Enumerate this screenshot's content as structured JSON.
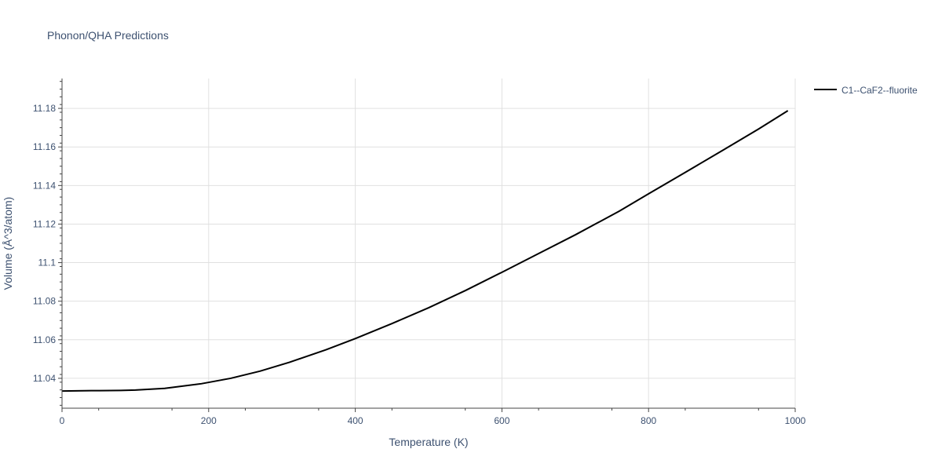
{
  "chart_data": {
    "type": "line",
    "title": "Phonon/QHA Predictions",
    "xlabel": "Temperature (K)",
    "ylabel": "Volume (Å^3/atom)",
    "xlim": [
      0,
      1000
    ],
    "ylim": [
      11.0245,
      11.1955
    ],
    "x_ticks": [
      0,
      200,
      400,
      600,
      800,
      1000
    ],
    "x_tick_labels": [
      "0",
      "200",
      "400",
      "600",
      "800",
      "1000"
    ],
    "y_ticks": [
      11.04,
      11.06,
      11.08,
      11.1,
      11.12,
      11.14,
      11.16,
      11.18
    ],
    "y_tick_labels": [
      "11.04",
      "11.06",
      "11.08",
      "11.1",
      "11.12",
      "11.14",
      "11.16",
      "11.18"
    ],
    "grid": true,
    "legend_position": "top-right",
    "series": [
      {
        "name": "C1--CaF2--fluorite",
        "color": "#000000",
        "x": [
          0,
          40,
          80,
          100,
          140,
          190,
          230,
          270,
          310,
          360,
          400,
          450,
          500,
          550,
          600,
          650,
          700,
          760,
          800,
          850,
          900,
          950,
          990
        ],
        "y": [
          11.0334,
          11.0336,
          11.0337,
          11.0339,
          11.0348,
          11.0372,
          11.04,
          11.0437,
          11.0483,
          11.0548,
          11.0606,
          11.0684,
          11.0766,
          11.0855,
          11.095,
          11.1047,
          11.1144,
          11.1267,
          11.1357,
          11.1468,
          11.158,
          11.1693,
          11.1788
        ]
      }
    ]
  }
}
